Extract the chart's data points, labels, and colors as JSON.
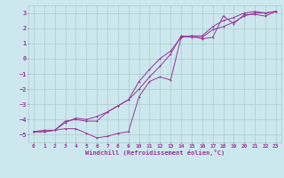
{
  "xlabel": "Windchill (Refroidissement éolien,°C)",
  "bg_color": "#cce8ee",
  "grid_color": "#aacccc",
  "line_color": "#993399",
  "xlim": [
    -0.5,
    23.5
  ],
  "ylim": [
    -5.5,
    3.5
  ],
  "xticks": [
    0,
    1,
    2,
    3,
    4,
    5,
    6,
    7,
    8,
    9,
    10,
    11,
    12,
    13,
    14,
    15,
    16,
    17,
    18,
    19,
    20,
    21,
    22,
    23
  ],
  "yticks": [
    -5,
    -4,
    -3,
    -2,
    -1,
    0,
    1,
    2,
    3
  ],
  "series1_x": [
    0,
    1,
    2,
    3,
    4,
    5,
    6,
    7,
    8,
    9,
    10,
    11,
    12,
    13,
    14,
    15,
    16,
    17,
    18,
    19,
    20,
    21,
    22,
    23
  ],
  "series1_y": [
    -4.8,
    -4.8,
    -4.7,
    -4.6,
    -4.6,
    -4.9,
    -5.2,
    -5.1,
    -4.9,
    -4.8,
    -2.5,
    -1.5,
    -1.2,
    -1.4,
    1.4,
    1.5,
    1.3,
    1.4,
    2.8,
    2.3,
    2.9,
    2.9,
    2.8,
    3.1
  ],
  "series2_x": [
    0,
    1,
    2,
    3,
    4,
    5,
    6,
    7,
    8,
    9,
    10,
    11,
    12,
    13,
    14,
    15,
    16,
    17,
    18,
    19,
    20,
    21,
    22,
    23
  ],
  "series2_y": [
    -4.8,
    -4.8,
    -4.7,
    -4.1,
    -4.0,
    -4.1,
    -4.1,
    -3.5,
    -3.1,
    -2.7,
    -2.0,
    -1.2,
    -0.5,
    0.3,
    1.5,
    1.4,
    1.4,
    1.9,
    2.1,
    2.4,
    2.8,
    3.0,
    3.0,
    3.1
  ],
  "series3_x": [
    0,
    1,
    2,
    3,
    4,
    5,
    6,
    7,
    8,
    9,
    10,
    11,
    12,
    13,
    14,
    15,
    16,
    17,
    18,
    19,
    20,
    21,
    22,
    23
  ],
  "series3_y": [
    -4.8,
    -4.7,
    -4.7,
    -4.2,
    -3.9,
    -4.0,
    -3.8,
    -3.5,
    -3.1,
    -2.7,
    -1.5,
    -0.7,
    0.0,
    0.5,
    1.4,
    1.5,
    1.5,
    2.1,
    2.5,
    2.7,
    3.0,
    3.1,
    3.0,
    3.1
  ],
  "label_fontsize": 4.5,
  "tick_fontsize": 4.5,
  "xlabel_fontsize": 5.0,
  "lw": 0.7,
  "ms": 2.0
}
